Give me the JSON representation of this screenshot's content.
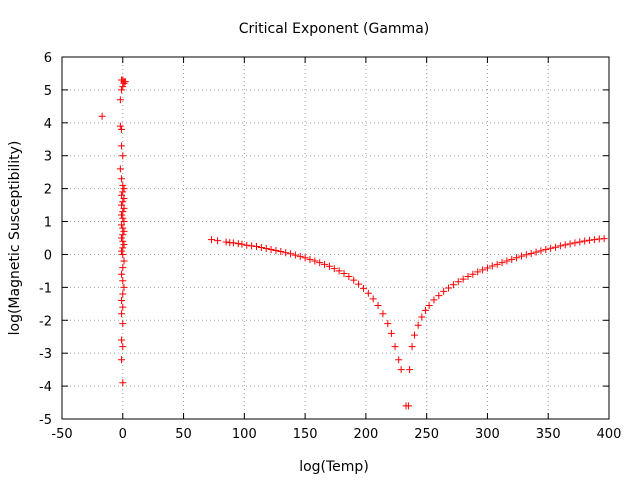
{
  "chart_data": {
    "type": "scatter",
    "title": "Critical Exponent (Gamma)",
    "xlabel": "log(Temp)",
    "ylabel": "log(Magnetic Susceptibility)",
    "xlim": [
      -50,
      400
    ],
    "ylim": [
      -5,
      6
    ],
    "xticks": [
      "-50",
      "0",
      "50",
      "100",
      "150",
      "200",
      "250",
      "300",
      "350",
      "400"
    ],
    "yticks": [
      "-5",
      "-4",
      "-3",
      "-2",
      "-1",
      "0",
      "1",
      "2",
      "3",
      "4",
      "5",
      "6"
    ],
    "grid": true,
    "legend": "none",
    "marker": "plus",
    "color": "#ff0000",
    "series": [
      {
        "points": [
          [
            -17,
            4.2
          ],
          [
            -2,
            3.9
          ],
          [
            -1,
            3.8
          ],
          [
            -2,
            4.7
          ],
          [
            -1,
            5.0
          ],
          [
            0,
            5.1
          ],
          [
            1,
            5.2
          ],
          [
            2,
            5.25
          ],
          [
            -1,
            5.3
          ],
          [
            0,
            5.3
          ],
          [
            1,
            5.25
          ],
          [
            -1,
            3.3
          ],
          [
            0,
            3.0
          ],
          [
            -2,
            2.6
          ],
          [
            -1,
            2.3
          ],
          [
            0,
            2.1
          ],
          [
            1,
            2.0
          ],
          [
            0,
            1.9
          ],
          [
            -1,
            1.8
          ],
          [
            1,
            1.7
          ],
          [
            0,
            1.6
          ],
          [
            -1,
            1.5
          ],
          [
            1,
            1.4
          ],
          [
            0,
            1.3
          ],
          [
            -1,
            1.2
          ],
          [
            0,
            1.1
          ],
          [
            1,
            1.0
          ],
          [
            -1,
            0.9
          ],
          [
            0,
            0.8
          ],
          [
            1,
            0.7
          ],
          [
            0,
            0.6
          ],
          [
            -1,
            0.5
          ],
          [
            0,
            0.4
          ],
          [
            1,
            0.3
          ],
          [
            0,
            0.2
          ],
          [
            -1,
            0.1
          ],
          [
            0,
            0.0
          ],
          [
            1,
            -0.2
          ],
          [
            0,
            -0.4
          ],
          [
            -1,
            -0.6
          ],
          [
            0,
            -0.8
          ],
          [
            1,
            -1.0
          ],
          [
            0,
            -1.2
          ],
          [
            -1,
            -1.4
          ],
          [
            0,
            -1.6
          ],
          [
            -1,
            -1.8
          ],
          [
            0,
            -2.1
          ],
          [
            -1,
            -2.6
          ],
          [
            0,
            -2.8
          ],
          [
            -1,
            -3.2
          ],
          [
            0,
            -3.9
          ]
        ]
      },
      {
        "points": [
          [
            73,
            0.45
          ],
          [
            78,
            0.42
          ],
          [
            85,
            0.38
          ],
          [
            88,
            0.36
          ],
          [
            91,
            0.35
          ],
          [
            95,
            0.33
          ],
          [
            98,
            0.31
          ],
          [
            102,
            0.28
          ],
          [
            106,
            0.26
          ],
          [
            110,
            0.24
          ],
          [
            114,
            0.21
          ],
          [
            118,
            0.18
          ],
          [
            122,
            0.15
          ],
          [
            126,
            0.12
          ],
          [
            130,
            0.09
          ],
          [
            134,
            0.05
          ],
          [
            138,
            0.02
          ],
          [
            142,
            -0.02
          ],
          [
            146,
            -0.06
          ],
          [
            150,
            -0.1
          ],
          [
            154,
            -0.15
          ],
          [
            158,
            -0.2
          ],
          [
            162,
            -0.25
          ],
          [
            166,
            -0.3
          ],
          [
            170,
            -0.36
          ],
          [
            174,
            -0.43
          ],
          [
            178,
            -0.5
          ],
          [
            182,
            -0.58
          ],
          [
            186,
            -0.67
          ],
          [
            190,
            -0.78
          ],
          [
            194,
            -0.9
          ],
          [
            198,
            -1.03
          ],
          [
            202,
            -1.18
          ],
          [
            206,
            -1.35
          ],
          [
            210,
            -1.55
          ],
          [
            214,
            -1.8
          ],
          [
            218,
            -2.1
          ],
          [
            221,
            -2.4
          ],
          [
            224,
            -2.8
          ],
          [
            227,
            -3.2
          ],
          [
            229,
            -3.5
          ],
          [
            233,
            -4.6
          ],
          [
            235,
            -4.6
          ],
          [
            236,
            -3.5
          ],
          [
            238,
            -2.8
          ],
          [
            240,
            -2.45
          ],
          [
            243,
            -2.15
          ],
          [
            246,
            -1.9
          ],
          [
            249,
            -1.7
          ],
          [
            252,
            -1.55
          ],
          [
            256,
            -1.38
          ],
          [
            260,
            -1.25
          ],
          [
            264,
            -1.12
          ],
          [
            268,
            -1.02
          ],
          [
            272,
            -0.92
          ],
          [
            276,
            -0.83
          ],
          [
            280,
            -0.75
          ],
          [
            284,
            -0.67
          ],
          [
            288,
            -0.6
          ],
          [
            292,
            -0.53
          ],
          [
            296,
            -0.47
          ],
          [
            300,
            -0.41
          ],
          [
            304,
            -0.35
          ],
          [
            308,
            -0.3
          ],
          [
            312,
            -0.25
          ],
          [
            316,
            -0.2
          ],
          [
            320,
            -0.15
          ],
          [
            324,
            -0.1
          ],
          [
            328,
            -0.05
          ],
          [
            332,
            -0.01
          ],
          [
            336,
            0.03
          ],
          [
            340,
            0.07
          ],
          [
            344,
            0.11
          ],
          [
            348,
            0.15
          ],
          [
            352,
            0.19
          ],
          [
            356,
            0.22
          ],
          [
            360,
            0.26
          ],
          [
            364,
            0.29
          ],
          [
            368,
            0.32
          ],
          [
            372,
            0.35
          ],
          [
            376,
            0.38
          ],
          [
            380,
            0.41
          ],
          [
            384,
            0.43
          ],
          [
            388,
            0.45
          ],
          [
            392,
            0.47
          ],
          [
            396,
            0.48
          ]
        ]
      }
    ]
  }
}
